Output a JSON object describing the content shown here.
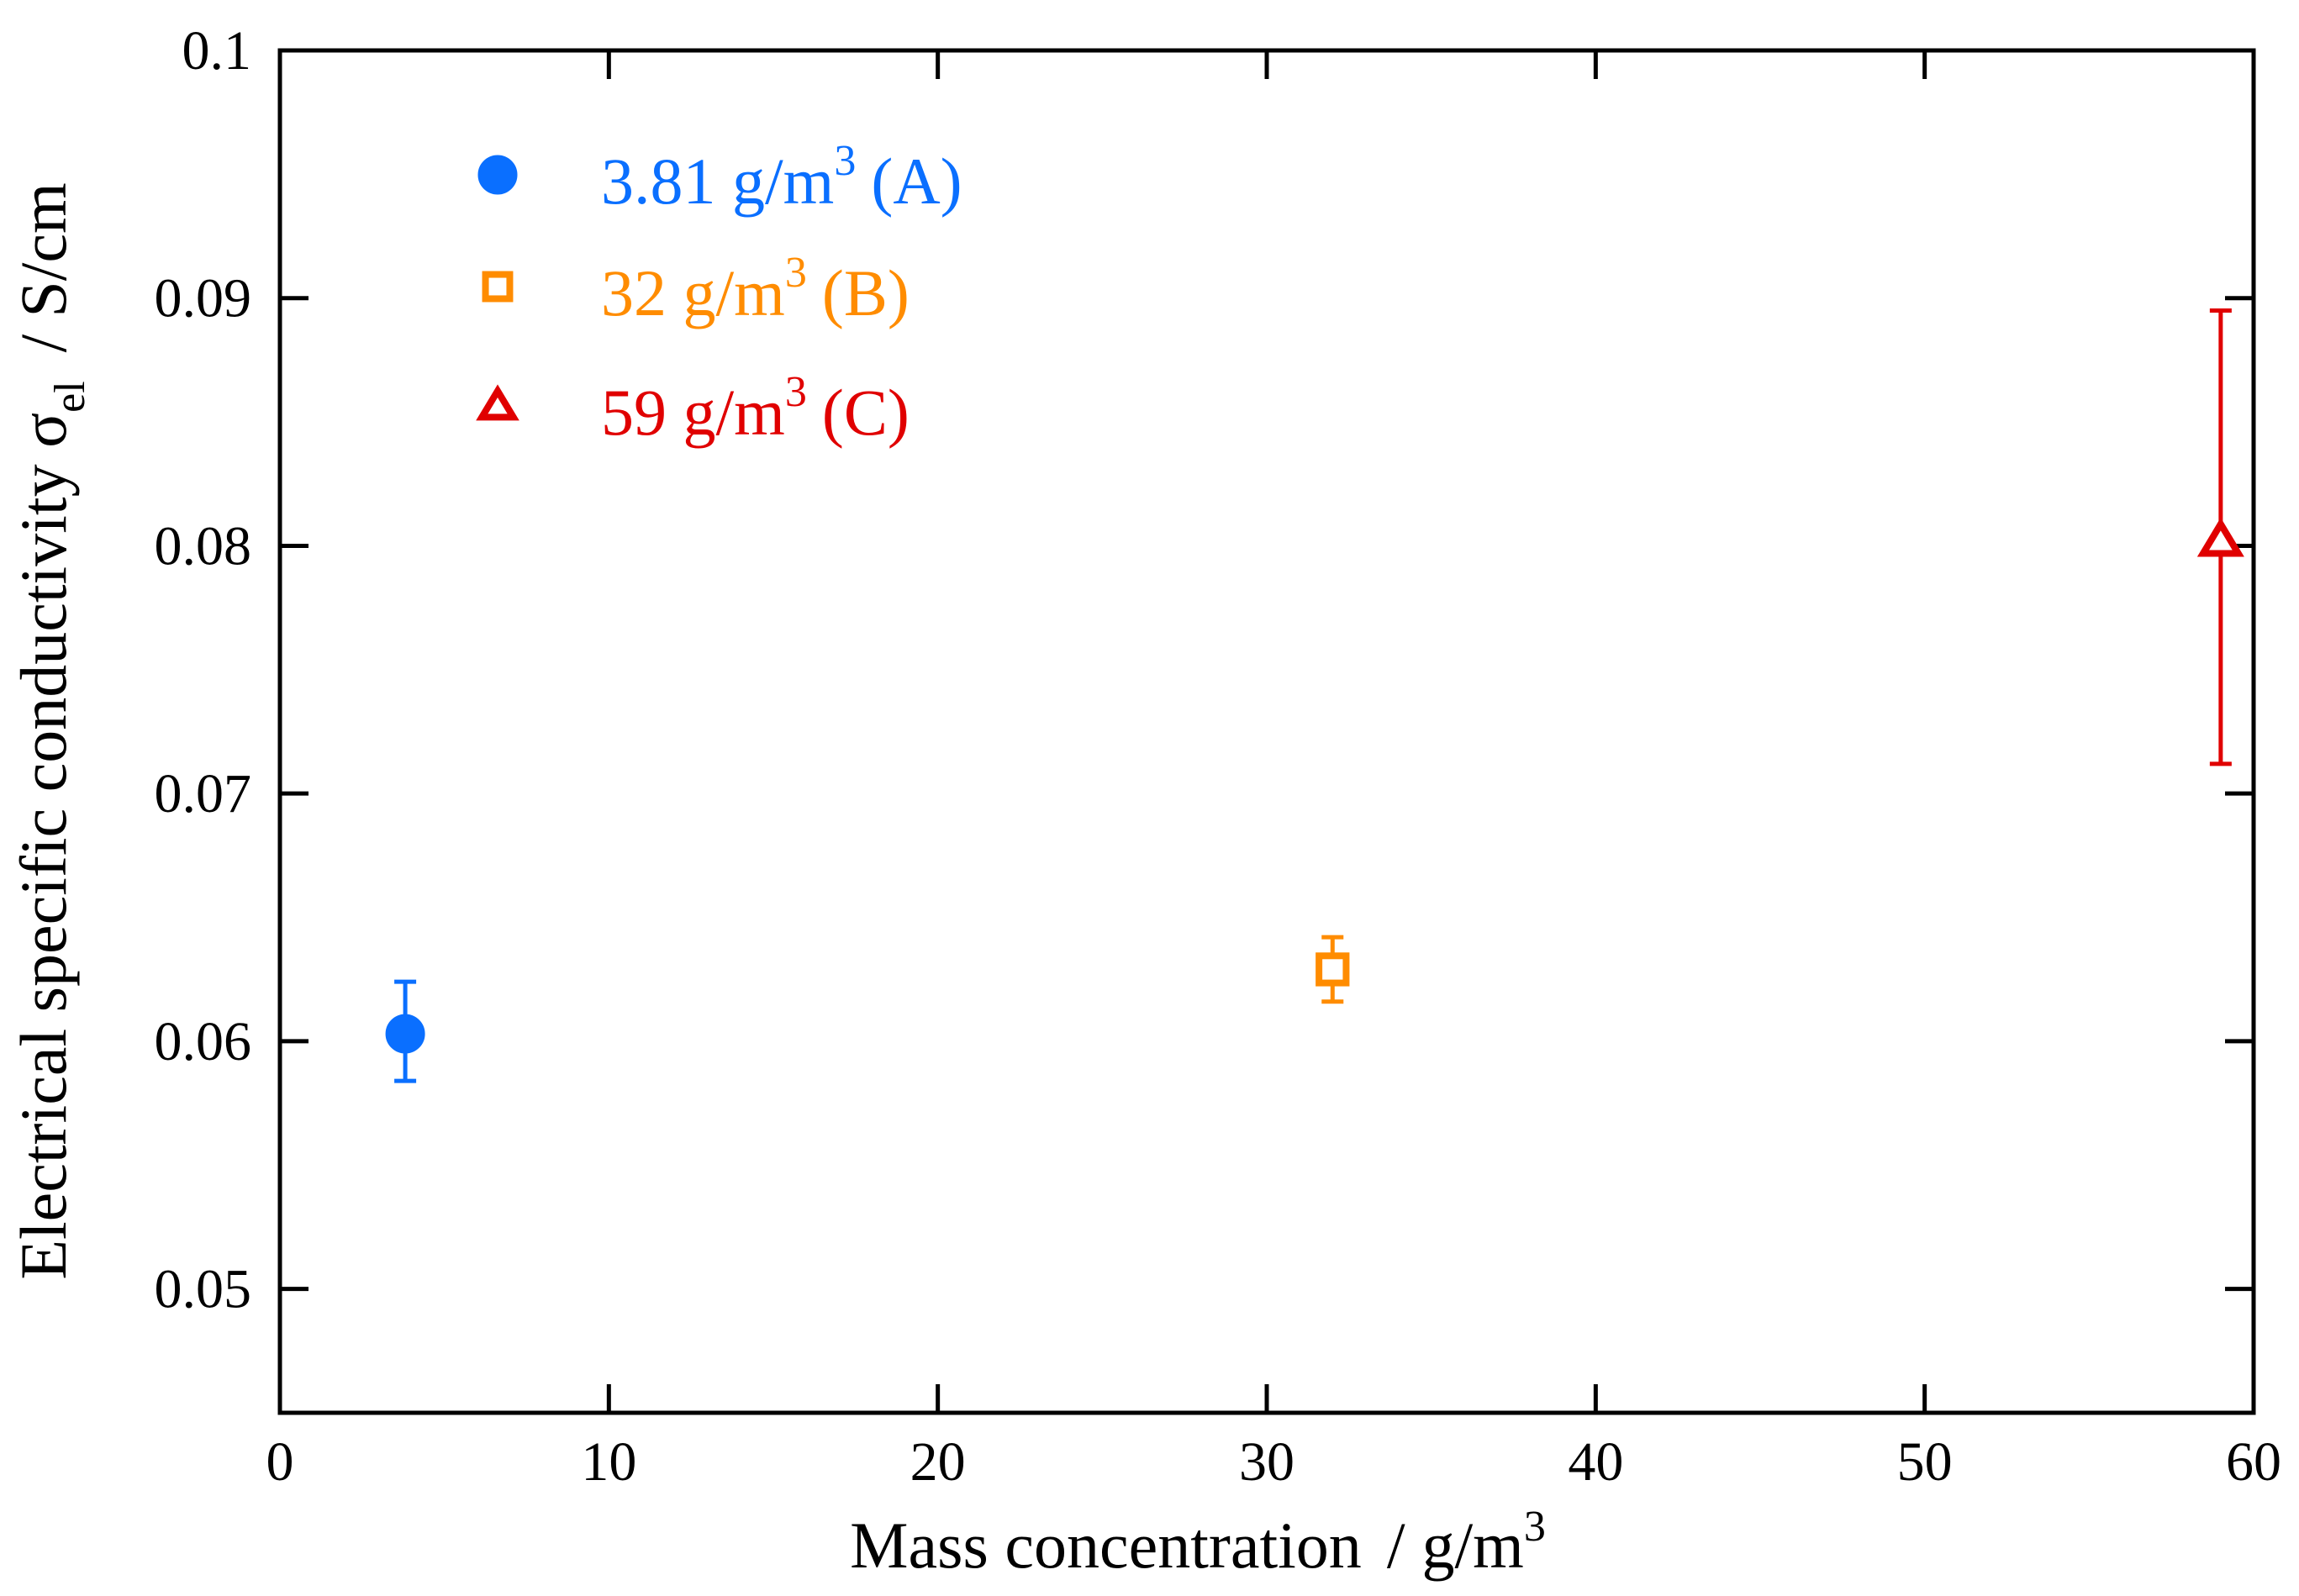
{
  "chart_data": {
    "type": "scatter",
    "title": "",
    "xlabel": "Mass concentration",
    "xunit": "g/m",
    "xunit_sup": "3",
    "ylabel": "Electrical specific conductivity σ",
    "ylabel_sub": "el",
    "yunit": "S/cm",
    "slash": "/",
    "xlim": [
      0,
      60
    ],
    "ylim": [
      0.045,
      0.1
    ],
    "xticks": [
      0,
      10,
      20,
      30,
      40,
      50,
      60
    ],
    "xtick_labels": [
      "0",
      "10",
      "20",
      "30",
      "40",
      "50",
      "60"
    ],
    "yticks": [
      0.05,
      0.06,
      0.07,
      0.08,
      0.09,
      0.1
    ],
    "ytick_labels": [
      "0.05",
      "0.06",
      "0.07",
      "0.08",
      "0.09",
      "0.1"
    ],
    "grid": false,
    "legend_position": "top-left",
    "series": [
      {
        "name": "3.81 g/m³ (A)",
        "legend_main": "3.81 g/m",
        "legend_sup": "3",
        "legend_tag": "(A)",
        "marker": "filled-circle",
        "color": "#0a6fff",
        "x": 3.81,
        "y": 0.0603,
        "err_low": 0.0584,
        "err_high": 0.0624
      },
      {
        "name": "32 g/m³ (B)",
        "legend_main": "32 g/m",
        "legend_sup": "3",
        "legend_tag": "(B)",
        "marker": "open-square",
        "color": "#ff8c00",
        "x": 32,
        "y": 0.0629,
        "err_low": 0.0616,
        "err_high": 0.0642
      },
      {
        "name": "59 g/m³ (C)",
        "legend_main": "59 g/m",
        "legend_sup": "3",
        "legend_tag": "(C)",
        "marker": "open-triangle",
        "color": "#e00000",
        "x": 59,
        "y": 0.0802,
        "err_low": 0.0712,
        "err_high": 0.0895
      }
    ]
  }
}
